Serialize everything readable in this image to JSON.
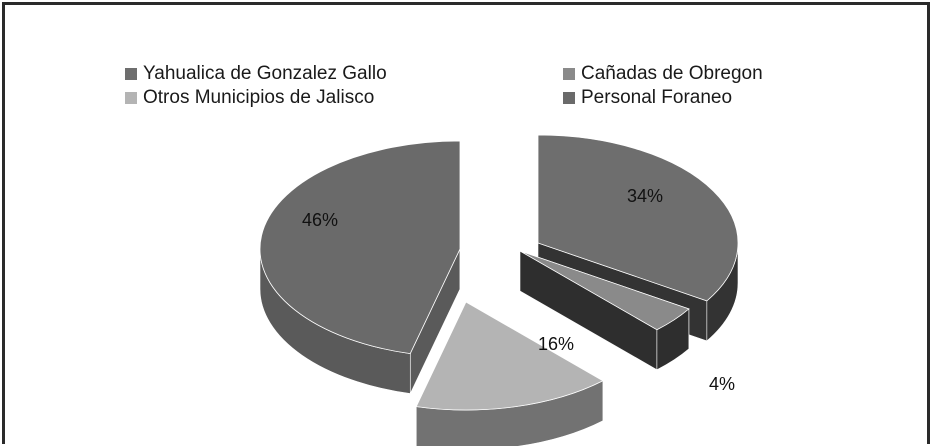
{
  "chart_data": {
    "type": "pie",
    "title": "",
    "legend_position": "top",
    "exploded": true,
    "three_d": true,
    "slices": [
      {
        "name": "Yahualica de Gonzalez Gallo",
        "value": 34,
        "label": "34%",
        "color": "#6e6e6e",
        "side_color": "#333333"
      },
      {
        "name": "Cañadas de Obregon",
        "value": 4,
        "label": "4%",
        "color": "#8a8a8a",
        "side_color": "#2e2e2e"
      },
      {
        "name": "Otros Municipios de Jalisco",
        "value": 16,
        "label": "16%",
        "color": "#b4b4b4",
        "side_color": "#727272"
      },
      {
        "name": "Personal Foraneo",
        "value": 46,
        "label": "46%",
        "color": "#6a6a6a",
        "side_color": "#5a5a5a"
      }
    ]
  }
}
